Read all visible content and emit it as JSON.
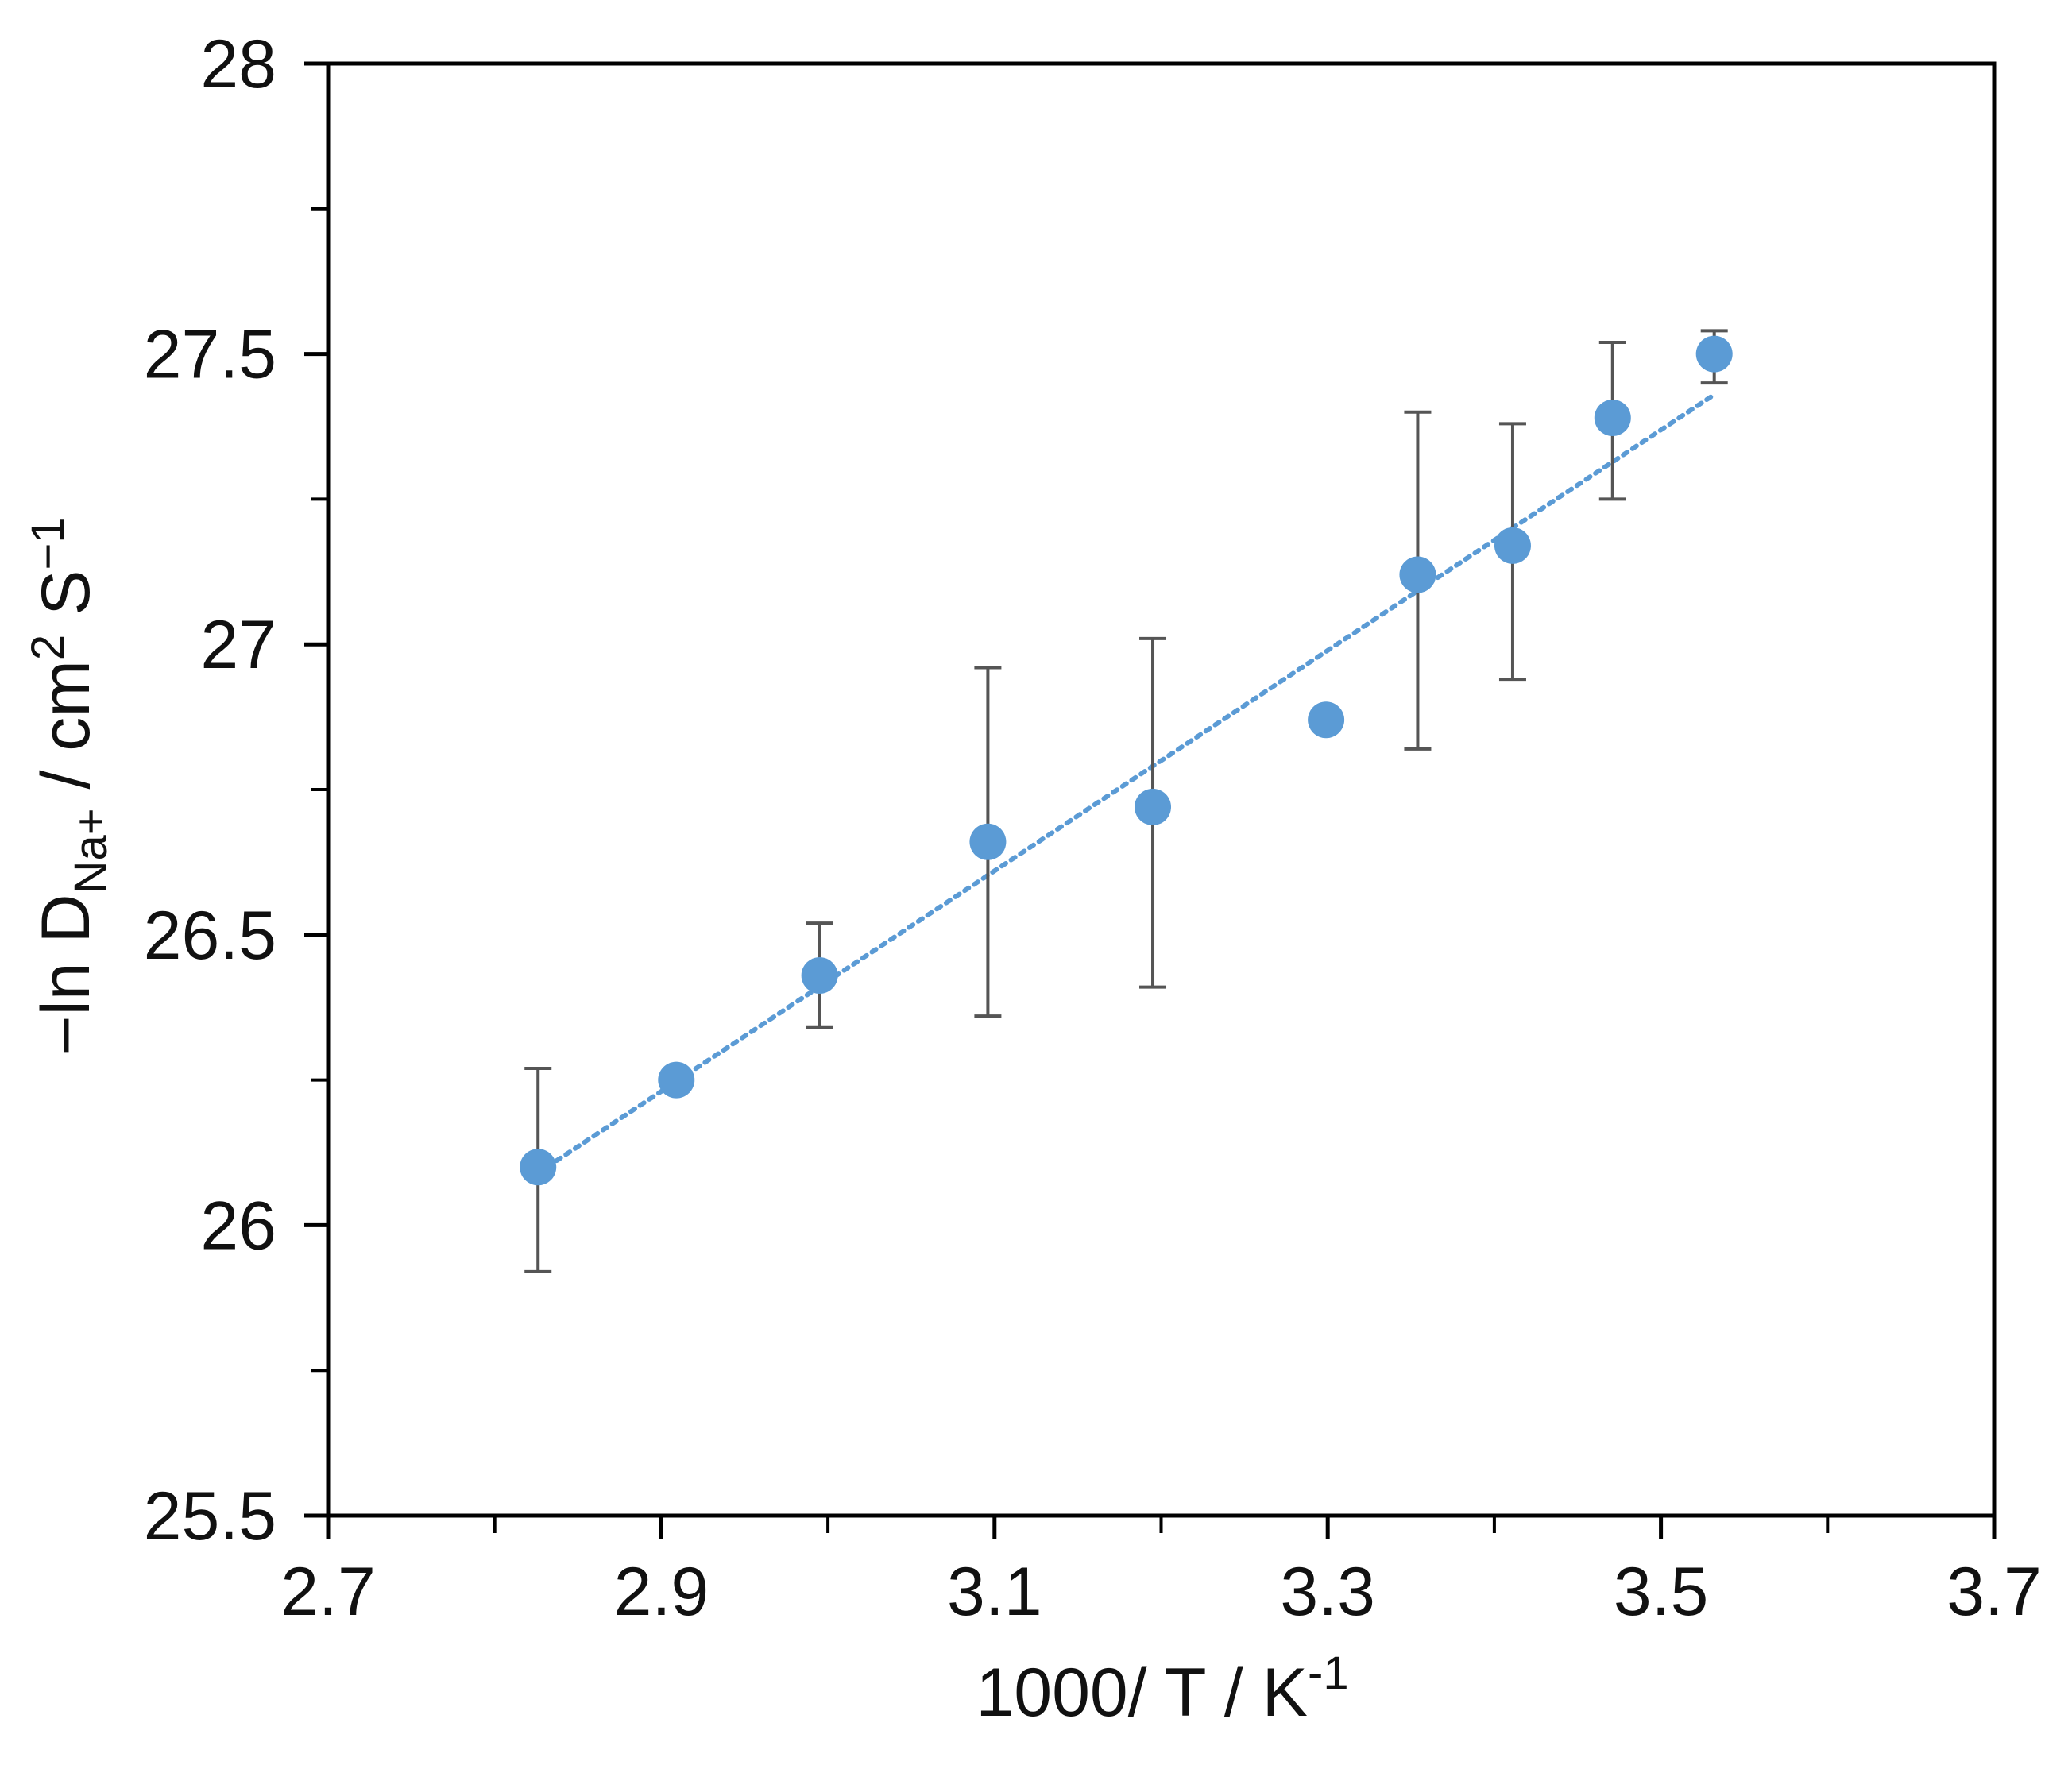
{
  "chart_data": {
    "type": "scatter",
    "title": "",
    "xlabel": {
      "main": "1000/ T / K",
      "sup": "-1"
    },
    "ylabel": {
      "prefix": "−ln D",
      "sub": "Na+",
      "middle": " / cm",
      "sup1": "2",
      "suffix": " S",
      "sup2": "−1"
    },
    "xlim": [
      2.7,
      3.7
    ],
    "ylim": [
      25.5,
      28.0
    ],
    "x_ticks": [
      2.7,
      2.9,
      3.1,
      3.3,
      3.5,
      3.7
    ],
    "x_tick_labels": [
      "2.7",
      "2.9",
      "3.1",
      "3.3",
      "3.5",
      "3.7"
    ],
    "x_minor_ticks": [
      2.8,
      3.0,
      3.2,
      3.4,
      3.6
    ],
    "y_ticks": [
      25.5,
      26.0,
      26.5,
      27.0,
      27.5,
      28.0
    ],
    "y_tick_labels": [
      "25.5",
      "26",
      "26.5",
      "27",
      "27.5",
      "28"
    ],
    "y_minor_ticks": [
      25.75,
      26.25,
      26.75,
      27.25,
      27.75
    ],
    "grid": false,
    "legend": "none",
    "marker_color": "#5b9bd5",
    "trendline_color": "#5b9bd5",
    "errorbar_color": "#555555",
    "points": [
      {
        "x": 2.826,
        "y": 26.1,
        "err_low": 25.92,
        "err_high": 26.27
      },
      {
        "x": 2.909,
        "y": 26.25
      },
      {
        "x": 2.995,
        "y": 26.43,
        "err_low": 26.34,
        "err_high": 26.52
      },
      {
        "x": 3.096,
        "y": 26.66,
        "err_low": 26.36,
        "err_high": 26.96
      },
      {
        "x": 3.195,
        "y": 26.72,
        "err_low": 26.41,
        "err_high": 27.01
      },
      {
        "x": 3.299,
        "y": 26.87
      },
      {
        "x": 3.354,
        "y": 27.12,
        "err_low": 26.82,
        "err_high": 27.4
      },
      {
        "x": 3.411,
        "y": 27.17,
        "err_low": 26.94,
        "err_high": 27.38
      },
      {
        "x": 3.471,
        "y": 27.39,
        "err_low": 27.25,
        "err_high": 27.52
      },
      {
        "x": 3.532,
        "y": 27.5,
        "err_low": 27.45,
        "err_high": 27.54
      }
    ],
    "trendline": {
      "style": "dotted",
      "x": [
        2.826,
        3.532
      ],
      "y": [
        26.09,
        27.43
      ]
    }
  }
}
